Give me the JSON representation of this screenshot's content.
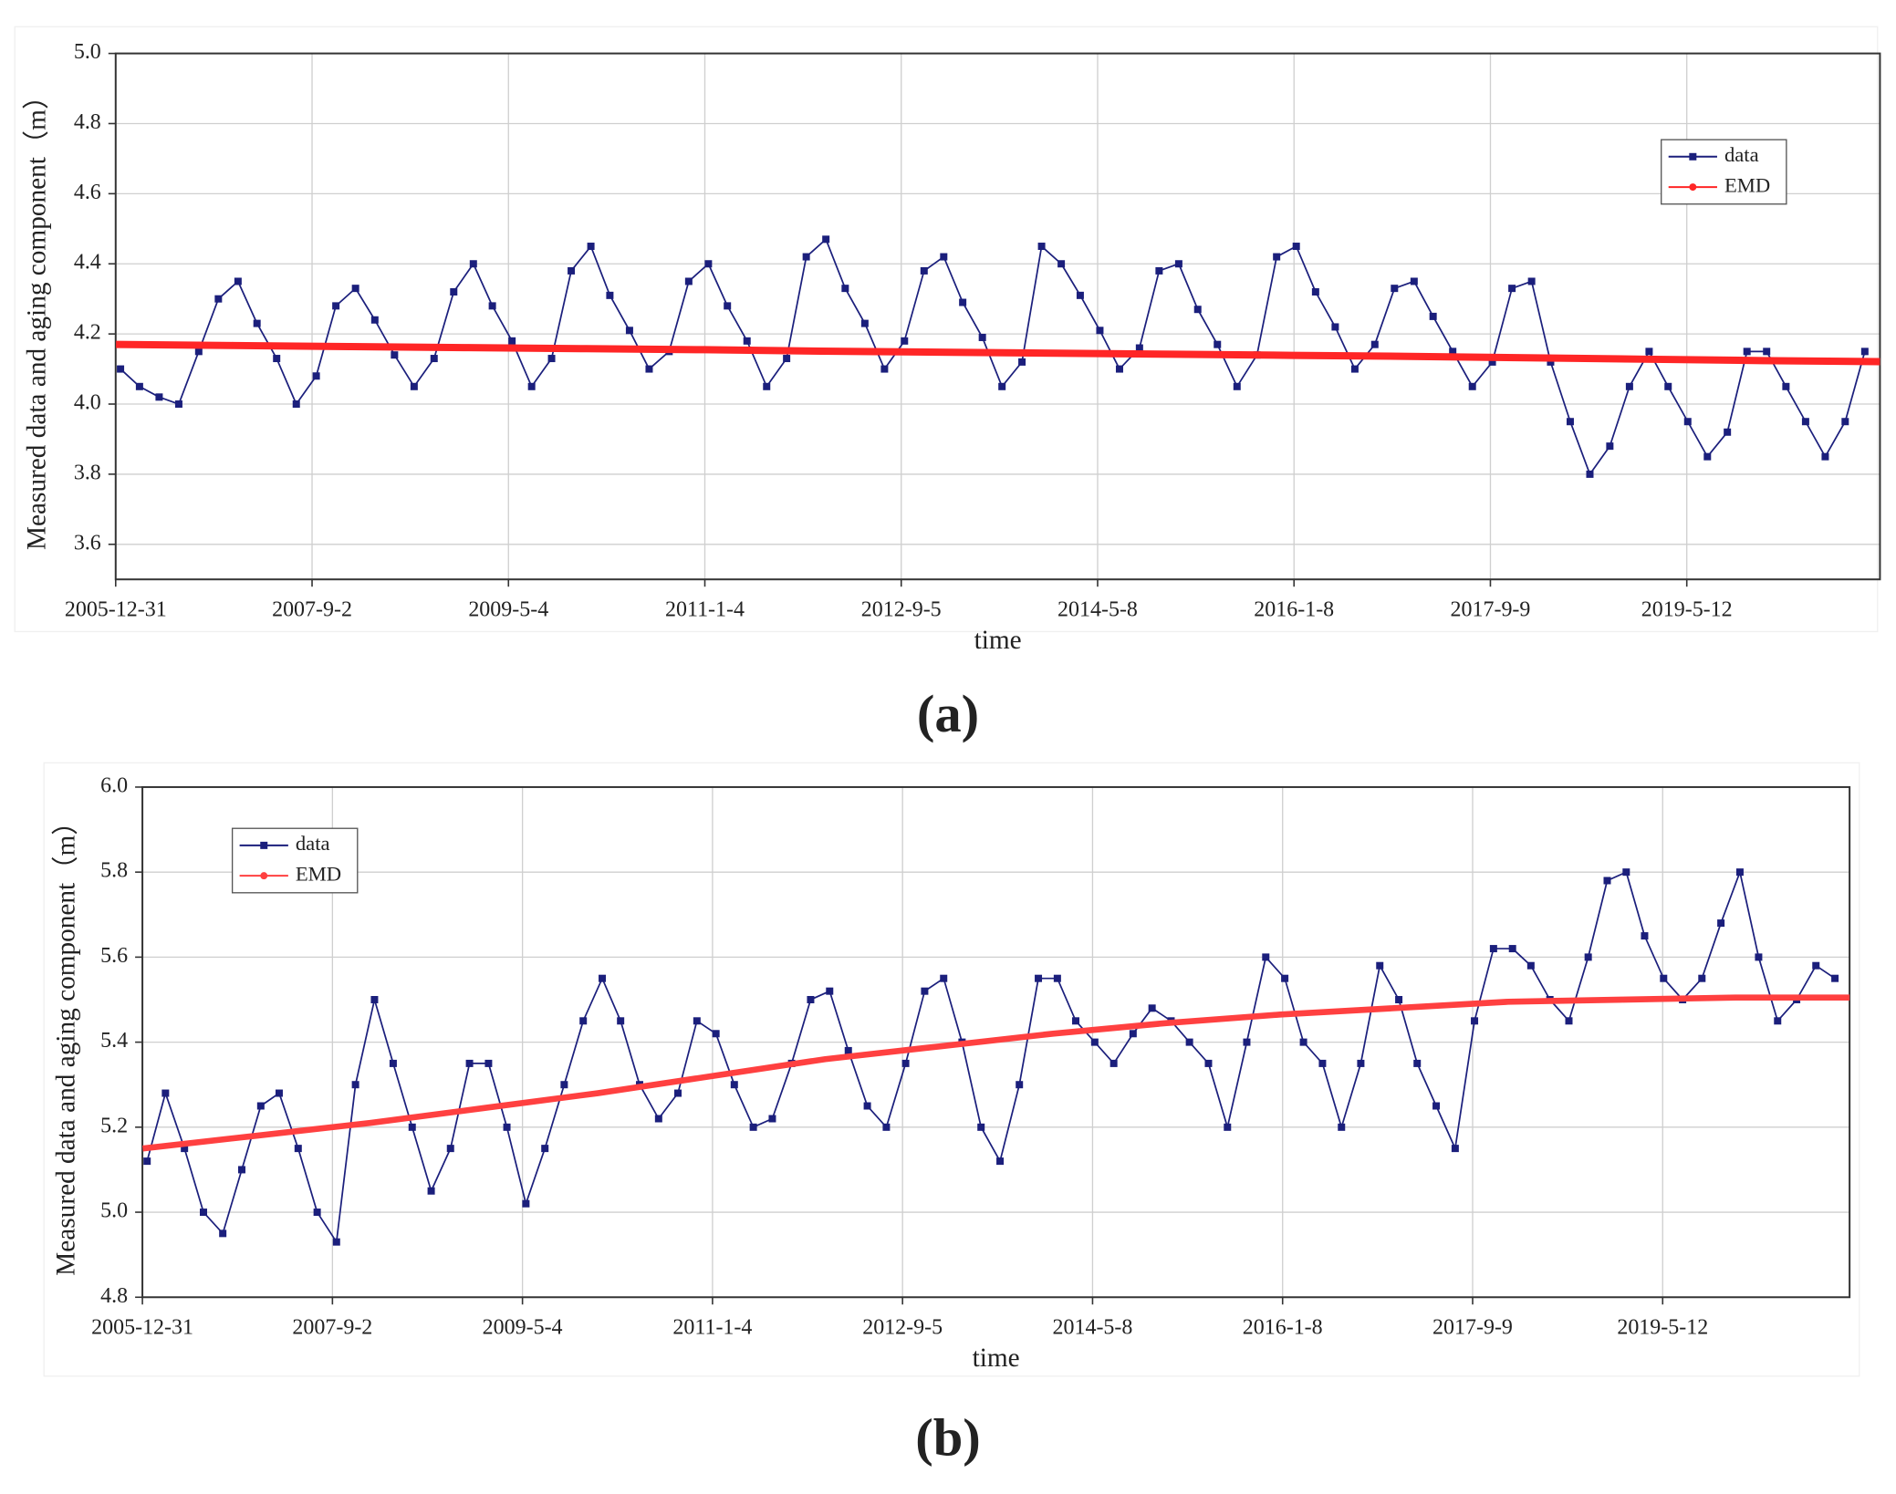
{
  "chart_data": [
    {
      "type": "line",
      "label": "(a)",
      "xlabel": "time",
      "ylabel": "Measured data and aging component（m）",
      "x": [
        "2006-1-15",
        "2006-3-15",
        "2006-5-15",
        "2006-7-15",
        "2006-9-15",
        "2006-11-15",
        "2007-1-15",
        "2007-3-15",
        "2007-5-15",
        "2007-7-15",
        "2007-9-15",
        "2007-11-15",
        "2008-1-15",
        "2008-3-15",
        "2008-5-15",
        "2008-7-15",
        "2008-9-15",
        "2008-11-15",
        "2009-1-15",
        "2009-3-15",
        "2009-5-15",
        "2009-7-15",
        "2009-9-15",
        "2009-11-15",
        "2010-1-15",
        "2010-3-15",
        "2010-5-15",
        "2010-7-15",
        "2010-9-15",
        "2010-11-15",
        "2011-1-15",
        "2011-3-15",
        "2011-5-15",
        "2011-7-15",
        "2011-9-15",
        "2011-11-15",
        "2012-1-15",
        "2012-3-15",
        "2012-5-15",
        "2012-7-15",
        "2012-9-15",
        "2012-11-15",
        "2013-1-15",
        "2013-3-15",
        "2013-5-15",
        "2013-7-15",
        "2013-9-15",
        "2013-11-15",
        "2014-1-15",
        "2014-3-15",
        "2014-5-15",
        "2014-7-15",
        "2014-9-15",
        "2014-11-15",
        "2015-1-15",
        "2015-3-15",
        "2015-5-15",
        "2015-7-15",
        "2015-9-15",
        "2015-11-15",
        "2016-1-15",
        "2016-3-15",
        "2016-5-15",
        "2016-7-15",
        "2016-9-15",
        "2016-11-15",
        "2017-1-15",
        "2017-3-15",
        "2017-5-15",
        "2017-7-15",
        "2017-9-15",
        "2017-11-15",
        "2018-1-15",
        "2018-3-15",
        "2018-5-15",
        "2018-7-15",
        "2018-9-15",
        "2018-11-15",
        "2019-1-15",
        "2019-3-15",
        "2019-5-15",
        "2019-7-15",
        "2019-9-15",
        "2019-11-15",
        "2020-1-15",
        "2020-3-15",
        "2020-5-15",
        "2020-7-15",
        "2020-9-15",
        "2020-11-15"
      ],
      "series": [
        {
          "name": "data",
          "color": "#1b1f7c",
          "marker": "square",
          "values": [
            4.1,
            4.05,
            4.02,
            4.0,
            4.15,
            4.3,
            4.35,
            4.23,
            4.13,
            4.0,
            4.08,
            4.28,
            4.33,
            4.24,
            4.14,
            4.05,
            4.13,
            4.32,
            4.4,
            4.28,
            4.18,
            4.05,
            4.13,
            4.38,
            4.45,
            4.31,
            4.21,
            4.1,
            4.15,
            4.35,
            4.4,
            4.28,
            4.18,
            4.05,
            4.13,
            4.42,
            4.47,
            4.33,
            4.23,
            4.1,
            4.18,
            4.38,
            4.42,
            4.29,
            4.19,
            4.05,
            4.12,
            4.45,
            4.4,
            4.31,
            4.21,
            4.1,
            4.16,
            4.38,
            4.4,
            4.27,
            4.17,
            4.05,
            4.14,
            4.42,
            4.45,
            4.32,
            4.22,
            4.1,
            4.17,
            4.33,
            4.35,
            4.25,
            4.15,
            4.05,
            4.12,
            4.33,
            4.35,
            4.12,
            3.95,
            3.8,
            3.88,
            4.05,
            4.15,
            4.05,
            3.95,
            3.85,
            3.92,
            4.15,
            4.15,
            4.05,
            3.95,
            3.85,
            3.95,
            4.15
          ]
        },
        {
          "name": "EMD",
          "color": "#ff2626",
          "marker": "circle",
          "x": [
            "2006-1-1",
            "2007-1-1",
            "2008-1-1",
            "2009-1-1",
            "2010-1-1",
            "2011-1-1",
            "2012-1-1",
            "2013-1-1",
            "2014-1-1",
            "2015-1-1",
            "2016-1-1",
            "2017-1-1",
            "2018-1-1",
            "2019-1-1",
            "2020-1-1",
            "2021-1-1"
          ],
          "values": [
            4.17,
            4.167,
            4.164,
            4.161,
            4.158,
            4.155,
            4.151,
            4.148,
            4.145,
            4.142,
            4.139,
            4.136,
            4.132,
            4.128,
            4.124,
            4.121
          ]
        }
      ],
      "xlim": [
        "2005-12-31",
        "2021-1-1"
      ],
      "xticks": [
        "2005-12-31",
        "2007-9-2",
        "2009-5-4",
        "2011-1-4",
        "2012-9-5",
        "2014-5-8",
        "2016-1-8",
        "2017-9-9",
        "2019-5-12"
      ],
      "ylim": [
        3.5,
        5.0
      ],
      "yticks": [
        3.6,
        3.8,
        {
          "value": 4.0,
          "label": "4.0"
        },
        4.2,
        4.4,
        4.6,
        4.8,
        {
          "value": 5.0,
          "label": "5.0"
        }
      ],
      "grid": true,
      "legend": "upper right"
    },
    {
      "type": "line",
      "label": "(b)",
      "xlabel": "time",
      "ylabel": "Measured data and aging component（m）",
      "x": [
        "2006-1-15",
        "2006-3-15",
        "2006-5-15",
        "2006-7-15",
        "2006-9-15",
        "2006-11-15",
        "2007-1-15",
        "2007-3-15",
        "2007-5-15",
        "2007-7-15",
        "2007-9-15",
        "2007-11-15",
        "2008-1-15",
        "2008-3-15",
        "2008-5-15",
        "2008-7-15",
        "2008-9-15",
        "2008-11-15",
        "2009-1-15",
        "2009-3-15",
        "2009-5-15",
        "2009-7-15",
        "2009-9-15",
        "2009-11-15",
        "2010-1-15",
        "2010-3-15",
        "2010-5-15",
        "2010-7-15",
        "2010-9-15",
        "2010-11-15",
        "2011-1-15",
        "2011-3-15",
        "2011-5-15",
        "2011-7-15",
        "2011-9-15",
        "2011-11-15",
        "2012-1-15",
        "2012-3-15",
        "2012-5-15",
        "2012-7-15",
        "2012-9-15",
        "2012-11-15",
        "2013-1-15",
        "2013-3-15",
        "2013-5-15",
        "2013-7-15",
        "2013-9-15",
        "2013-11-15",
        "2014-1-15",
        "2014-3-15",
        "2014-5-15",
        "2014-7-15",
        "2014-9-15",
        "2014-11-15",
        "2015-1-15",
        "2015-3-15",
        "2015-5-15",
        "2015-7-15",
        "2015-9-15",
        "2015-11-15",
        "2016-1-15",
        "2016-3-15",
        "2016-5-15",
        "2016-7-15",
        "2016-9-15",
        "2016-11-15",
        "2017-1-15",
        "2017-3-15",
        "2017-5-15",
        "2017-7-15",
        "2017-9-15",
        "2017-11-15",
        "2018-1-15",
        "2018-3-15",
        "2018-5-15",
        "2018-7-15",
        "2018-9-15",
        "2018-11-15",
        "2019-1-15",
        "2019-3-15",
        "2019-5-15",
        "2019-7-15",
        "2019-9-15",
        "2019-11-15",
        "2020-1-15",
        "2020-3-15",
        "2020-5-15",
        "2020-7-15",
        "2020-9-15",
        "2020-11-15"
      ],
      "series": [
        {
          "name": "data",
          "color": "#1b1f7c",
          "marker": "square",
          "values": [
            5.12,
            5.28,
            5.15,
            5.0,
            4.95,
            5.1,
            5.25,
            5.28,
            5.15,
            5.0,
            4.93,
            5.3,
            5.5,
            5.35,
            5.2,
            5.05,
            5.15,
            5.35,
            5.35,
            5.2,
            5.02,
            5.15,
            5.3,
            5.45,
            5.55,
            5.45,
            5.3,
            5.22,
            5.28,
            5.45,
            5.42,
            5.3,
            5.2,
            5.22,
            5.35,
            5.5,
            5.52,
            5.38,
            5.25,
            5.2,
            5.35,
            5.52,
            5.55,
            5.4,
            5.2,
            5.12,
            5.3,
            5.55,
            5.55,
            5.45,
            5.4,
            5.35,
            5.42,
            5.48,
            5.45,
            5.4,
            5.35,
            5.2,
            5.4,
            5.6,
            5.55,
            5.4,
            5.35,
            5.2,
            5.35,
            5.58,
            5.5,
            5.35,
            5.25,
            5.15,
            5.45,
            5.62,
            5.62,
            5.58,
            5.5,
            5.45,
            5.6,
            5.78,
            5.8,
            5.65,
            5.55,
            5.5,
            5.55,
            5.68,
            5.8,
            5.6,
            5.45,
            5.5,
            5.58,
            5.55
          ]
        },
        {
          "name": "EMD",
          "color": "#ff4040",
          "marker": "circle",
          "x": [
            "2006-1-1",
            "2007-1-1",
            "2008-1-1",
            "2009-1-1",
            "2010-1-1",
            "2011-1-1",
            "2012-1-1",
            "2013-1-1",
            "2014-1-1",
            "2015-1-1",
            "2016-1-1",
            "2017-1-1",
            "2018-1-1",
            "2019-1-1",
            "2020-1-1",
            "2021-1-1"
          ],
          "values": [
            5.15,
            5.18,
            5.21,
            5.245,
            5.28,
            5.32,
            5.36,
            5.39,
            5.42,
            5.445,
            5.465,
            5.48,
            5.495,
            5.5,
            5.505,
            5.505
          ]
        }
      ],
      "xlim": [
        "2005-12-31",
        "2021-1-1"
      ],
      "xticks": [
        "2005-12-31",
        "2007-9-2",
        "2009-5-4",
        "2011-1-4",
        "2012-9-5",
        "2014-5-8",
        "2016-1-8",
        "2017-9-9",
        "2019-5-12"
      ],
      "ylim": [
        4.8,
        6.0
      ],
      "yticks": [
        4.8,
        {
          "value": 5.0,
          "label": "5.0"
        },
        5.2,
        5.4,
        5.6,
        5.8,
        {
          "value": 6.0,
          "label": "6.0"
        }
      ],
      "grid": true,
      "legend": "upper left"
    }
  ]
}
